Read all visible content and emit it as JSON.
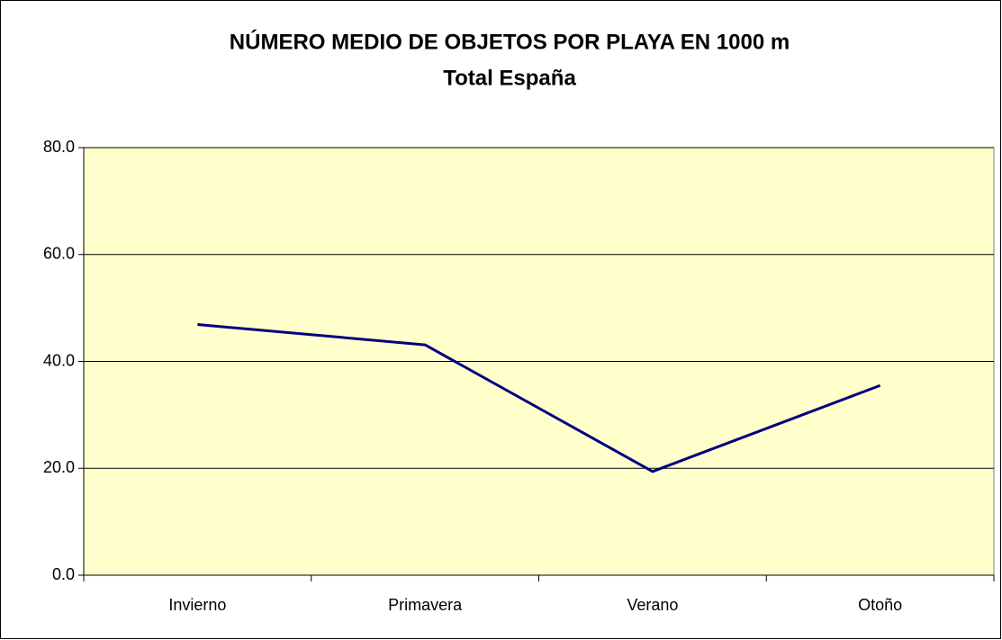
{
  "chart_data": {
    "type": "line",
    "title": "NÚMERO MEDIO DE OBJETOS POR PLAYA EN 1000 m",
    "subtitle": "Total España",
    "categories": [
      "Invierno",
      "Primavera",
      "Verano",
      "Otoño"
    ],
    "series": [
      {
        "name": "Total España",
        "color": "#000080",
        "values": [
          46.9,
          43.1,
          19.4,
          35.5
        ]
      }
    ],
    "ylim": [
      0,
      80
    ],
    "yticks": [
      {
        "value": 0,
        "label": "0.0"
      },
      {
        "value": 20,
        "label": "20.0"
      },
      {
        "value": 40,
        "label": "40.0"
      },
      {
        "value": 60,
        "label": "60.0"
      },
      {
        "value": 80,
        "label": "80.0"
      }
    ],
    "grid": true,
    "plot_background": "#ffffcc"
  }
}
